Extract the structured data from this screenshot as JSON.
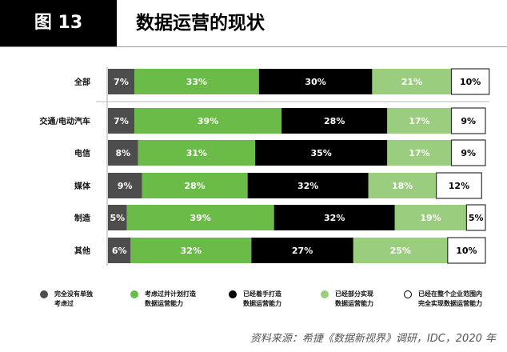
{
  "header": {
    "figure_label": "图 13",
    "title": "数据运营的现状"
  },
  "chart_data": {
    "type": "bar",
    "orientation": "horizontal-stacked",
    "title": "数据运营的现状",
    "categories": [
      "全部",
      "交通/电动汽车",
      "电信",
      "媒体",
      "制造",
      "其他"
    ],
    "series": [
      {
        "name": "完全没有单独考虑过",
        "color": "#4d4d4d",
        "values": [
          7,
          7,
          8,
          9,
          5,
          6
        ]
      },
      {
        "name": "考虑过并计划打造数据运营能力",
        "color": "#6abb47",
        "values": [
          33,
          39,
          31,
          28,
          39,
          32
        ]
      },
      {
        "name": "已经着手打造数据运营能力",
        "color": "#000000",
        "values": [
          30,
          28,
          35,
          32,
          32,
          27
        ]
      },
      {
        "name": "已经部分实现数据运营能力",
        "color": "#9acd7e",
        "values": [
          21,
          17,
          17,
          18,
          19,
          25
        ]
      },
      {
        "name": "已经在整个企业范围内完全实现数据运营能力",
        "color": "#ffffff",
        "values": [
          10,
          9,
          9,
          12,
          5,
          10
        ]
      }
    ],
    "unit": "%",
    "legend_position": "bottom"
  },
  "legend": [
    {
      "line1": "完全没有单独",
      "line2": "考虑过"
    },
    {
      "line1": "考虑过并计划打造",
      "line2": "数据运营能力"
    },
    {
      "line1": "已经着手打造",
      "line2": "数据运营能力"
    },
    {
      "line1": "已经部分实现",
      "line2": "数据运营能力"
    },
    {
      "line1": "已经在整个企业范围内",
      "line2": "完全实现数据运营能力"
    }
  ],
  "source": "资料来源：希捷《数据新视界》调研，IDC，2020 年"
}
